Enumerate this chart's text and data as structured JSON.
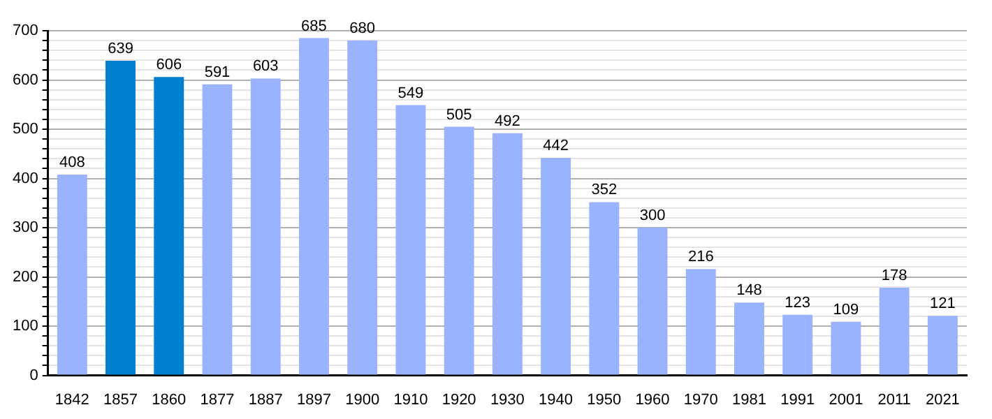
{
  "chart_data": {
    "type": "bar",
    "categories": [
      "1842",
      "1857",
      "1860",
      "1877",
      "1887",
      "1897",
      "1900",
      "1910",
      "1920",
      "1930",
      "1940",
      "1950",
      "1960",
      "1970",
      "1981",
      "1991",
      "2001",
      "2011",
      "2021"
    ],
    "values": [
      408,
      639,
      606,
      591,
      603,
      685,
      680,
      549,
      505,
      492,
      442,
      352,
      300,
      216,
      148,
      123,
      109,
      178,
      121
    ],
    "colors": [
      "#99b3ff",
      "#0080d0",
      "#0080d0",
      "#99b3ff",
      "#99b3ff",
      "#99b3ff",
      "#99b3ff",
      "#99b3ff",
      "#99b3ff",
      "#99b3ff",
      "#99b3ff",
      "#99b3ff",
      "#99b3ff",
      "#99b3ff",
      "#99b3ff",
      "#99b3ff",
      "#99b3ff",
      "#99b3ff",
      "#99b3ff"
    ],
    "ylim": [
      0,
      700
    ],
    "yticks": [
      0,
      {
        "value": 20,
        "label": null
      },
      {
        "value": 40,
        "label": null
      },
      {
        "value": 60,
        "label": null
      },
      {
        "value": 80,
        "label": null
      },
      100,
      {
        "value": 120,
        "label": null
      },
      {
        "value": 140,
        "label": null
      },
      {
        "value": 160,
        "label": null
      },
      {
        "value": 180,
        "label": null
      },
      200,
      {
        "value": 220,
        "label": null
      },
      {
        "value": 240,
        "label": null
      },
      {
        "value": 260,
        "label": null
      },
      {
        "value": 280,
        "label": null
      },
      300,
      {
        "value": 320,
        "label": null
      },
      {
        "value": 340,
        "label": null
      },
      {
        "value": 360,
        "label": null
      },
      {
        "value": 380,
        "label": null
      },
      400,
      {
        "value": 420,
        "label": null
      },
      {
        "value": 440,
        "label": null
      },
      {
        "value": 460,
        "label": null
      },
      {
        "value": 480,
        "label": null
      },
      500,
      {
        "value": 520,
        "label": null
      },
      {
        "value": 540,
        "label": null
      },
      {
        "value": 560,
        "label": null
      },
      {
        "value": 580,
        "label": null
      },
      600,
      {
        "value": 620,
        "label": null
      },
      {
        "value": 640,
        "label": null
      },
      {
        "value": 660,
        "label": null
      },
      {
        "value": 680,
        "label": null
      },
      700
    ],
    "grid": true,
    "data_labels": true
  }
}
